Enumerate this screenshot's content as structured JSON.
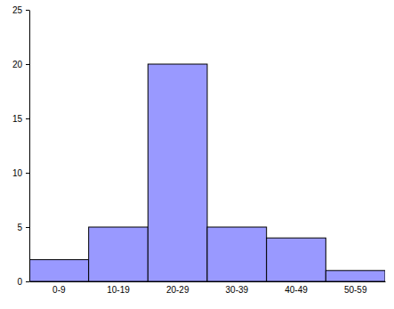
{
  "chart_data": {
    "type": "bar",
    "categories": [
      "0-9",
      "10-19",
      "20-29",
      "30-39",
      "40-49",
      "50-59"
    ],
    "values": [
      2,
      5,
      20,
      5,
      4,
      1
    ],
    "color": "#9999ff",
    "ylim": [
      0,
      25
    ],
    "yticks": [
      0,
      5,
      10,
      15,
      20,
      25
    ],
    "grid": false
  }
}
